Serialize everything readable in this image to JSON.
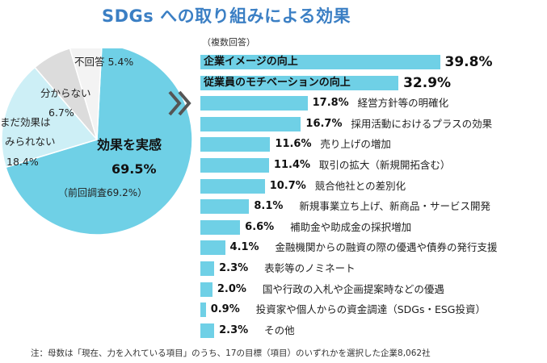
{
  "title": "SDGs への取り組みによる効果",
  "chart_data": [
    {
      "type": "pie",
      "slices": [
        {
          "name": "効果を実感",
          "value": 69.5,
          "pct_text": "69.5%",
          "color": "#6fd0e6"
        },
        {
          "name": "まだ効果は みられない",
          "value": 18.4,
          "pct_text": "18.4%",
          "color": "#cdeff6"
        },
        {
          "name": "分からない",
          "value": 6.7,
          "pct_text": "6.7%",
          "color": "#dcdcdc"
        },
        {
          "name": "不回答",
          "value": 5.4,
          "pct_text": "5.4%",
          "color": "#f3f3f3"
        }
      ],
      "labels": {
        "main_name": "効果を実感",
        "main_pct": "69.5%",
        "main_prev": "（前回調査69.2%）",
        "noeff_line1": "まだ効果は",
        "noeff_line2": "みられない",
        "noeff_pct": "18.4%",
        "unk_name": "分からない",
        "unk_pct": "6.7%",
        "noans": "不回答 5.4%"
      }
    },
    {
      "type": "bar",
      "orientation": "horizontal",
      "note": "（複数回答）",
      "categories": [
        "企業イメージの向上",
        "従業員のモチベーションの向上",
        "経営方針等の明確化",
        "採用活動におけるプラスの効果",
        "売り上げの増加",
        "取引の拡大（新規開拓含む）",
        "競合他社との差別化",
        "新規事業立ち上げ、新商品・サービス開発",
        "補助金や助成金の採択増加",
        "金融機関からの融資の際の優遇や債券の発行支援",
        "表彰等のノミネート",
        "国や行政の入札や企画提案時などの優遇",
        "投資家や個人からの資金調達（SDGs・ESG投資）",
        "その他"
      ],
      "values": [
        39.8,
        32.9,
        17.8,
        16.7,
        11.6,
        11.4,
        10.7,
        8.1,
        6.6,
        4.1,
        2.3,
        2.0,
        0.9,
        2.3
      ],
      "value_labels": [
        "39.8%",
        "32.9%",
        "17.8%",
        "16.7%",
        "11.6%",
        "11.4%",
        "10.7%",
        "8.1%",
        "6.6%",
        "4.1%",
        "2.3%",
        "2.0%",
        "0.9%",
        "2.3%"
      ],
      "label_inside": [
        true,
        true,
        false,
        false,
        false,
        false,
        false,
        false,
        false,
        false,
        false,
        false,
        false,
        false
      ],
      "xlim": [
        0,
        40
      ]
    }
  ],
  "footnote": "注：母数は「現在、力を入れている項目」のうち、17の目標（項目）のいずれかを選択した企業8,062社",
  "colors": {
    "bar": "#6fd0e6",
    "title": "#3b7fc4",
    "arrow": "#555555"
  }
}
